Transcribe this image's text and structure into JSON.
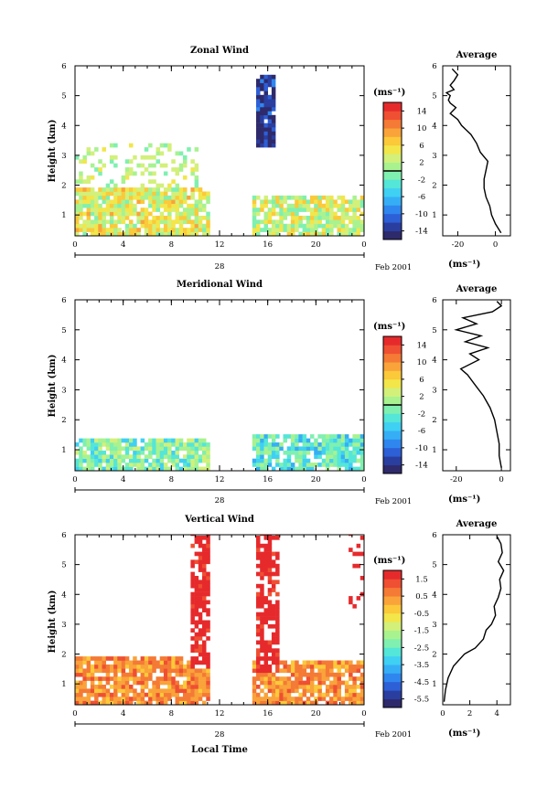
{
  "figure": {
    "date_label": "Feb 2001",
    "day_label": "28",
    "xlabel": "Local Time",
    "ylabel": "Height (km)",
    "unit": "(ms⁻¹)",
    "avg_unit": "(ms⁻¹)",
    "avg_title": "Average"
  },
  "palette": [
    "#2e2a6b",
    "#2a3ea0",
    "#2d5fd6",
    "#2f86ee",
    "#36aef5",
    "#3fd0f3",
    "#54e6d8",
    "#7ff0b0",
    "#a8f290",
    "#d3f07a",
    "#f2e64a",
    "#fbc93a",
    "#f9a33a",
    "#f47a35",
    "#ef4f32",
    "#e62a2c"
  ],
  "chart_data": [
    {
      "type": "heatmap",
      "title": "Zonal Wind",
      "x_ticks": [
        "0",
        "4",
        "8",
        "12",
        "16",
        "20",
        "0"
      ],
      "xlim": [
        0,
        24
      ],
      "y_ticks": [
        "1",
        "2",
        "3",
        "4",
        "5",
        "6"
      ],
      "ylim": [
        0.3,
        6
      ],
      "color_range": [
        -16,
        16
      ],
      "colorbar_ticks": [
        "14",
        "10",
        "6",
        "2",
        "-2",
        "-6",
        "-10",
        "-14"
      ],
      "zero_line": 0,
      "gaps": [
        [
          11.1,
          14.5
        ]
      ],
      "features": [
        {
          "description": "weak easterly/westerly mixed layer",
          "t": [
            0,
            11
          ],
          "z": [
            0.3,
            1.9
          ],
          "value": 4
        },
        {
          "description": "strong easterly column",
          "t": [
            15.0,
            16.4
          ],
          "z": [
            3.2,
            5.6
          ],
          "value": -14
        },
        {
          "description": "mixed layer",
          "t": [
            14.5,
            24
          ],
          "z": [
            0.3,
            1.6
          ],
          "value": 3
        }
      ],
      "average_profile": {
        "title": "Average",
        "x_ticks": [
          "-20",
          "0"
        ],
        "xlim": [
          -28,
          8
        ],
        "y_ticks": [
          "1",
          "2",
          "3",
          "4",
          "5",
          "6"
        ],
        "ylim": [
          0.3,
          6
        ],
        "height_km": [
          0.4,
          0.7,
          1.0,
          1.3,
          1.6,
          1.9,
          2.2,
          2.5,
          2.8,
          3.1,
          3.4,
          3.7,
          4.0,
          4.2,
          4.4,
          4.6,
          4.75,
          4.85,
          5.0,
          5.1,
          5.2,
          5.35,
          5.5,
          5.7,
          5.9
        ],
        "value_ms": [
          3,
          0,
          -2,
          -3,
          -5,
          -6,
          -6,
          -5,
          -4,
          -8,
          -10,
          -13,
          -18,
          -20,
          -24,
          -21,
          -24,
          -25,
          -24,
          -26,
          -22,
          -24,
          -22,
          -20,
          -23
        ]
      }
    },
    {
      "type": "heatmap",
      "title": "Meridional Wind",
      "x_ticks": [
        "0",
        "4",
        "8",
        "12",
        "16",
        "20",
        "0"
      ],
      "xlim": [
        0,
        24
      ],
      "y_ticks": [
        "1",
        "2",
        "3",
        "4",
        "5",
        "6"
      ],
      "ylim": [
        0.3,
        6
      ],
      "color_range": [
        -16,
        16
      ],
      "colorbar_ticks": [
        "14",
        "10",
        "6",
        "2",
        "-2",
        "-6",
        "-10",
        "-14"
      ],
      "zero_line": 0,
      "gaps": [
        [
          11.1,
          14.5
        ]
      ],
      "features": [
        {
          "description": "weak southerly/northerly layer",
          "t": [
            0,
            11
          ],
          "z": [
            0.3,
            1.3
          ],
          "value": -1
        },
        {
          "description": "weak southerly layer",
          "t": [
            14.5,
            24
          ],
          "z": [
            0.3,
            1.5
          ],
          "value": -3
        }
      ],
      "average_profile": {
        "title": "Average",
        "x_ticks": [
          "-20",
          "0"
        ],
        "xlim": [
          -26,
          4
        ],
        "y_ticks": [
          "1",
          "2",
          "3",
          "4",
          "5",
          "6"
        ],
        "ylim": [
          0.3,
          6
        ],
        "height_km": [
          0.4,
          0.8,
          1.2,
          1.6,
          2.0,
          2.4,
          2.8,
          3.2,
          3.5,
          3.7,
          4.0,
          4.2,
          4.4,
          4.6,
          4.8,
          5.0,
          5.2,
          5.4,
          5.6,
          5.8,
          5.95
        ],
        "value_ms": [
          0,
          -1,
          -1,
          -2,
          -3,
          -5,
          -8,
          -12,
          -15,
          -18,
          -10,
          -14,
          -6,
          -16,
          -9,
          -20,
          -11,
          -17,
          -4,
          0,
          -2
        ]
      }
    },
    {
      "type": "heatmap",
      "title": "Vertical Wind",
      "x_ticks": [
        "0",
        "4",
        "8",
        "12",
        "16",
        "20",
        "0"
      ],
      "xlim": [
        0,
        24
      ],
      "y_ticks": [
        "1",
        "2",
        "3",
        "4",
        "5",
        "6"
      ],
      "ylim": [
        0.3,
        6
      ],
      "color_range": [
        -6.0,
        2.0
      ],
      "colorbar_ticks": [
        "1.5",
        "0.5",
        "-0.5",
        "-1.5",
        "-2.5",
        "-3.5",
        "-4.5",
        "-5.5"
      ],
      "gaps": [
        [
          11.1,
          14.5
        ]
      ],
      "features": [
        {
          "description": "updrafts column",
          "t": [
            9.3,
            11.0
          ],
          "z": [
            1.5,
            6.0
          ],
          "value": 2
        },
        {
          "description": "updrafts column",
          "t": [
            15.0,
            16.8
          ],
          "z": [
            1.3,
            6.0
          ],
          "value": 2
        },
        {
          "description": "weak updrafts layer",
          "t": [
            0,
            11
          ],
          "z": [
            0.3,
            1.9
          ],
          "value": 0.5
        },
        {
          "description": "weak updrafts layer",
          "t": [
            14.5,
            24
          ],
          "z": [
            0.3,
            1.7
          ],
          "value": 0.5
        }
      ],
      "average_profile": {
        "title": "Average",
        "x_ticks": [
          "0",
          "2",
          "4"
        ],
        "xlim": [
          0,
          5
        ],
        "y_ticks": [
          "1",
          "2",
          "3",
          "4",
          "5",
          "6"
        ],
        "ylim": [
          0.3,
          6
        ],
        "height_km": [
          0.4,
          0.8,
          1.2,
          1.6,
          2.0,
          2.2,
          2.5,
          2.8,
          3.0,
          3.3,
          3.6,
          3.9,
          4.2,
          4.5,
          4.8,
          5.1,
          5.4,
          5.7,
          5.95
        ],
        "value_ms": [
          0.1,
          0.2,
          0.4,
          0.8,
          1.6,
          2.4,
          3.0,
          3.2,
          3.6,
          3.9,
          3.8,
          4.1,
          4.3,
          4.2,
          4.5,
          4.1,
          4.4,
          4.3,
          4.0
        ]
      }
    }
  ]
}
